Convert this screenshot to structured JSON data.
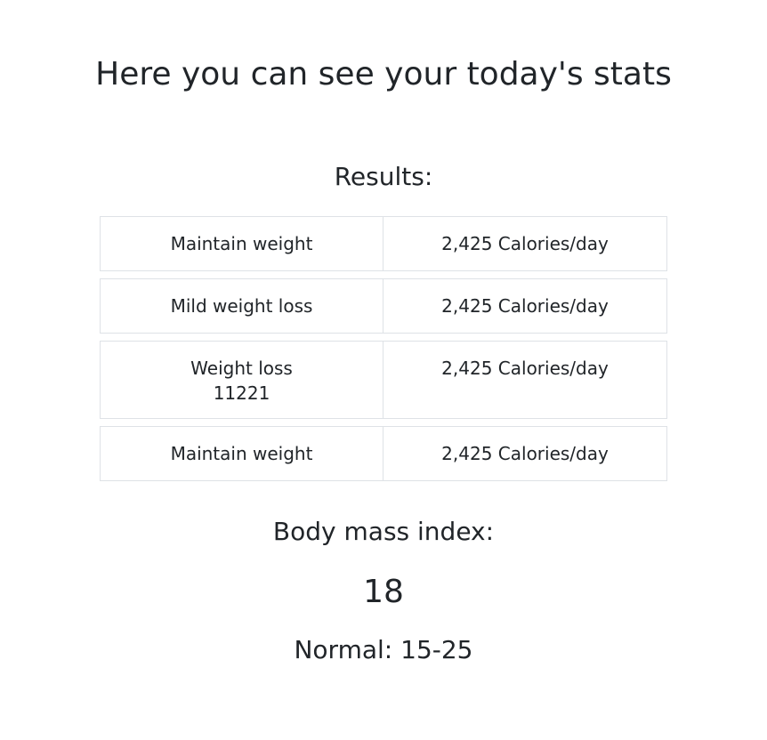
{
  "page_title": "Here you can see your today's stats",
  "results": {
    "heading": "Results:",
    "rows": [
      {
        "label_lines": [
          "Maintain weight"
        ],
        "value": "2,425 Calories/day"
      },
      {
        "label_lines": [
          "Mild weight loss"
        ],
        "value": "2,425 Calories/day"
      },
      {
        "label_lines": [
          "Weight loss",
          "11221"
        ],
        "value": "2,425 Calories/day"
      },
      {
        "label_lines": [
          "Maintain weight"
        ],
        "value": "2,425 Calories/day"
      }
    ]
  },
  "bmi": {
    "heading": "Body mass index:",
    "value": "18",
    "normal_range": "Normal: 15-25"
  }
}
